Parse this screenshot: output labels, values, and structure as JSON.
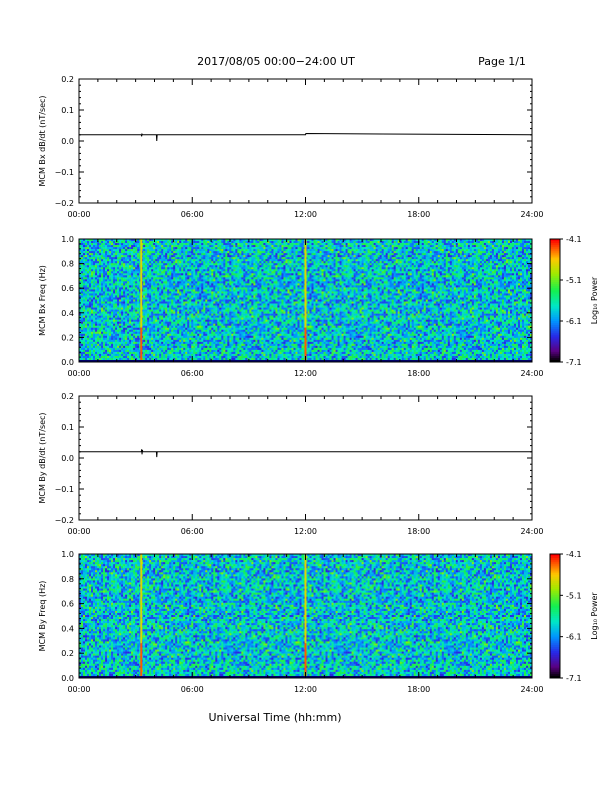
{
  "header": {
    "title": "2017/08/05  00:00−24:00 UT",
    "page": "Page 1/1"
  },
  "footer": {
    "xlabel": "Universal Time (hh:mm)"
  },
  "chart_data": [
    {
      "type": "line",
      "ylabel": "MCM Bx dB/dt (nT/sec)",
      "xlabel": "",
      "xlim": [
        0,
        24
      ],
      "ylim": [
        -0.2,
        0.2
      ],
      "xticks": [
        "00:00",
        "06:00",
        "12:00",
        "18:00",
        "24:00"
      ],
      "yticks": [
        "0.2",
        "0.1",
        "0.0",
        "−0.1",
        "−0.2"
      ],
      "series": [
        {
          "x": [
            0,
            3.3,
            3.32,
            3.34,
            3.36,
            4.1,
            4.12,
            4.14,
            12.0,
            12.02,
            24
          ],
          "y": [
            0.02,
            0.02,
            0.015,
            0.022,
            0.02,
            0.02,
            0.0,
            0.02,
            0.02,
            0.024,
            0.02
          ]
        }
      ]
    },
    {
      "type": "heatmap",
      "ylabel": "MCM Bx Freq (Hz)",
      "xlim": [
        0,
        24
      ],
      "ylim": [
        0.0,
        1.0
      ],
      "xticks": [
        "00:00",
        "06:00",
        "12:00",
        "18:00",
        "24:00"
      ],
      "yticks": [
        "1.0",
        "0.8",
        "0.6",
        "0.4",
        "0.2",
        "0.0"
      ],
      "colorbar": {
        "label": "Log₁₀ Power",
        "ticks": [
          "-4.1",
          "-5.1",
          "-6.1",
          "-7.1"
        ],
        "range": [
          -7.1,
          -4.1
        ]
      },
      "events": [
        3.3,
        12.0
      ]
    },
    {
      "type": "line",
      "ylabel": "MCM By dB/dt (nT/sec)",
      "xlabel": "",
      "xlim": [
        0,
        24
      ],
      "ylim": [
        -0.2,
        0.2
      ],
      "xticks": [
        "00:00",
        "06:00",
        "12:00",
        "18:00",
        "24:00"
      ],
      "yticks": [
        "0.2",
        "0.1",
        "0.0",
        "−0.1",
        "−0.2"
      ],
      "series": [
        {
          "x": [
            0,
            3.3,
            3.32,
            3.34,
            3.36,
            3.38,
            4.1,
            4.12,
            4.14,
            24
          ],
          "y": [
            0.02,
            0.02,
            0.028,
            0.012,
            0.026,
            0.02,
            0.02,
            0.003,
            0.02,
            0.02
          ]
        }
      ]
    },
    {
      "type": "heatmap",
      "ylabel": "MCM By Freq (Hz)",
      "xlim": [
        0,
        24
      ],
      "ylim": [
        0.0,
        1.0
      ],
      "xticks": [
        "00:00",
        "06:00",
        "12:00",
        "18:00",
        "24:00"
      ],
      "yticks": [
        "1.0",
        "0.8",
        "0.6",
        "0.4",
        "0.2",
        "0.0"
      ],
      "colorbar": {
        "label": "Log₁₀ Power",
        "ticks": [
          "-4.1",
          "-5.1",
          "-6.1",
          "-7.1"
        ],
        "range": [
          -7.1,
          -4.1
        ]
      },
      "events": [
        3.3,
        12.0
      ]
    }
  ]
}
